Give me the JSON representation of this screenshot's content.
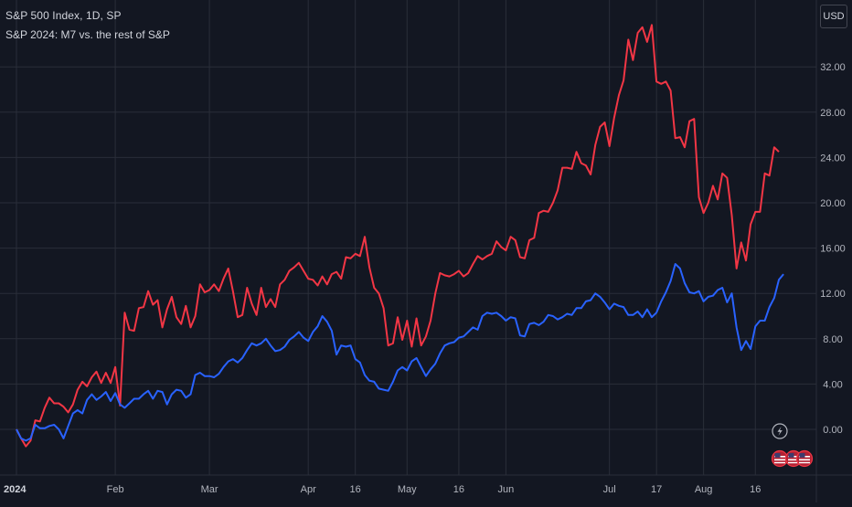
{
  "header": {
    "title": "S&P 500 Index, 1D, SP",
    "subtitle": "S&P 2024: M7 vs. the rest of S&P",
    "currency": "USD"
  },
  "colors": {
    "background": "#131722",
    "grid": "#2a2e39",
    "m7_line": "#f23645",
    "rest_line": "#2962ff"
  },
  "icons": [
    "lightning-icon",
    "us-flag-icon"
  ],
  "chart_data": {
    "type": "line",
    "ylim": [
      -3,
      36
    ],
    "y_ticks": [
      "0.00",
      "4.00",
      "8.00",
      "12.00",
      "16.00",
      "20.00",
      "24.00",
      "28.00",
      "32.00"
    ],
    "x_ticks": [
      "2024",
      "Feb",
      "Mar",
      "Apr",
      "16",
      "May",
      "16",
      "Jun",
      "Jul",
      "17",
      "Aug",
      "16"
    ],
    "x_tick_positions": [
      0,
      21,
      41,
      62,
      72,
      83,
      94,
      104,
      126,
      136,
      146,
      157
    ],
    "grid": true,
    "legend": "none",
    "series": [
      {
        "values": [
          0.0,
          -0.8,
          -1.5,
          -1.0,
          0.8,
          0.7,
          1.9,
          2.8,
          2.3,
          2.3,
          2.0,
          1.5,
          2.2,
          3.5,
          4.2,
          3.8,
          4.6,
          5.1,
          4.1,
          5.0,
          4.1,
          5.5,
          2.1,
          10.3,
          8.8,
          8.7,
          10.7,
          10.8,
          12.2,
          11.0,
          11.4,
          9.0,
          10.6,
          11.7,
          9.9,
          9.3,
          10.9,
          9.0,
          10.0,
          12.8,
          12.1,
          12.3,
          12.8,
          12.2,
          13.3,
          14.2,
          12.2,
          9.9,
          10.1,
          12.5,
          11.1,
          10.1,
          12.5,
          10.8,
          11.5,
          10.8,
          12.8,
          13.2,
          14.0,
          14.3,
          14.7,
          14.0,
          13.3,
          13.2,
          12.7,
          13.5,
          12.8,
          13.7,
          13.9,
          13.3,
          15.2,
          15.1,
          15.5,
          15.3,
          17.0,
          14.3,
          12.5,
          12.0,
          10.7,
          7.4,
          7.6,
          9.9,
          7.9,
          9.6,
          7.3,
          9.8,
          7.4,
          8.2,
          9.6,
          12.0,
          13.8,
          13.6,
          13.5,
          13.7,
          14.0,
          13.5,
          13.8,
          14.6,
          15.3,
          15.0,
          15.3,
          15.5,
          16.6,
          16.1,
          15.8,
          17.0,
          16.7,
          15.2,
          15.1,
          16.7,
          16.9,
          19.1,
          19.3,
          19.2,
          20.0,
          21.1,
          23.1,
          23.1,
          23.0,
          24.5,
          23.5,
          23.3,
          22.5,
          25.1,
          26.7,
          27.1,
          25.0,
          27.5,
          29.5,
          30.8,
          34.4,
          32.6,
          35.0,
          35.5,
          34.2,
          35.7,
          30.7,
          30.5,
          30.7,
          29.9,
          25.7,
          25.8,
          24.9,
          27.2,
          27.4,
          20.5,
          19.1,
          20.0,
          21.5,
          20.3,
          22.6,
          22.2,
          18.9,
          14.2,
          16.5,
          14.9,
          18.1,
          19.2,
          19.2,
          22.6,
          22.4,
          24.9,
          24.5
        ]
      },
      {
        "values": [
          0.0,
          -0.8,
          -1.0,
          -0.8,
          0.4,
          0.1,
          0.1,
          0.3,
          0.4,
          0.0,
          -0.8,
          0.3,
          1.4,
          1.7,
          1.4,
          2.6,
          3.1,
          2.6,
          2.9,
          3.3,
          2.5,
          3.2,
          2.2,
          1.9,
          2.3,
          2.7,
          2.7,
          3.1,
          3.4,
          2.7,
          3.4,
          3.3,
          2.2,
          3.1,
          3.5,
          3.4,
          2.8,
          3.1,
          4.8,
          5.0,
          4.7,
          4.7,
          4.6,
          4.9,
          5.5,
          6.0,
          6.2,
          5.9,
          6.3,
          7.0,
          7.6,
          7.4,
          7.6,
          8.0,
          7.4,
          6.9,
          7.0,
          7.3,
          7.9,
          8.2,
          8.6,
          8.1,
          7.8,
          8.6,
          9.1,
          10.0,
          9.5,
          8.7,
          6.6,
          7.4,
          7.3,
          7.4,
          6.2,
          5.9,
          4.8,
          4.3,
          4.2,
          3.6,
          3.5,
          3.4,
          4.2,
          5.2,
          5.5,
          5.2,
          6.0,
          6.3,
          5.5,
          4.7,
          5.3,
          5.8,
          6.7,
          7.4,
          7.6,
          7.7,
          8.1,
          8.2,
          8.6,
          9.0,
          8.8,
          10.0,
          10.3,
          10.2,
          10.3,
          10.0,
          9.6,
          9.9,
          9.8,
          8.3,
          8.2,
          9.3,
          9.4,
          9.2,
          9.5,
          10.1,
          10.0,
          9.7,
          9.9,
          10.2,
          10.1,
          10.7,
          10.7,
          11.3,
          11.4,
          12.0,
          11.7,
          11.2,
          10.6,
          11.1,
          10.9,
          10.8,
          10.1,
          10.1,
          10.4,
          9.9,
          10.6,
          9.9,
          10.3,
          11.3,
          12.1,
          13.1,
          14.6,
          14.2,
          12.9,
          12.1,
          12.0,
          12.2,
          11.3,
          11.7,
          11.8,
          12.3,
          12.5,
          11.2,
          12.0,
          9.0,
          7.0,
          7.8,
          7.1,
          9.1,
          9.6,
          9.6,
          10.8,
          11.6,
          13.2,
          13.7
        ]
      }
    ]
  }
}
